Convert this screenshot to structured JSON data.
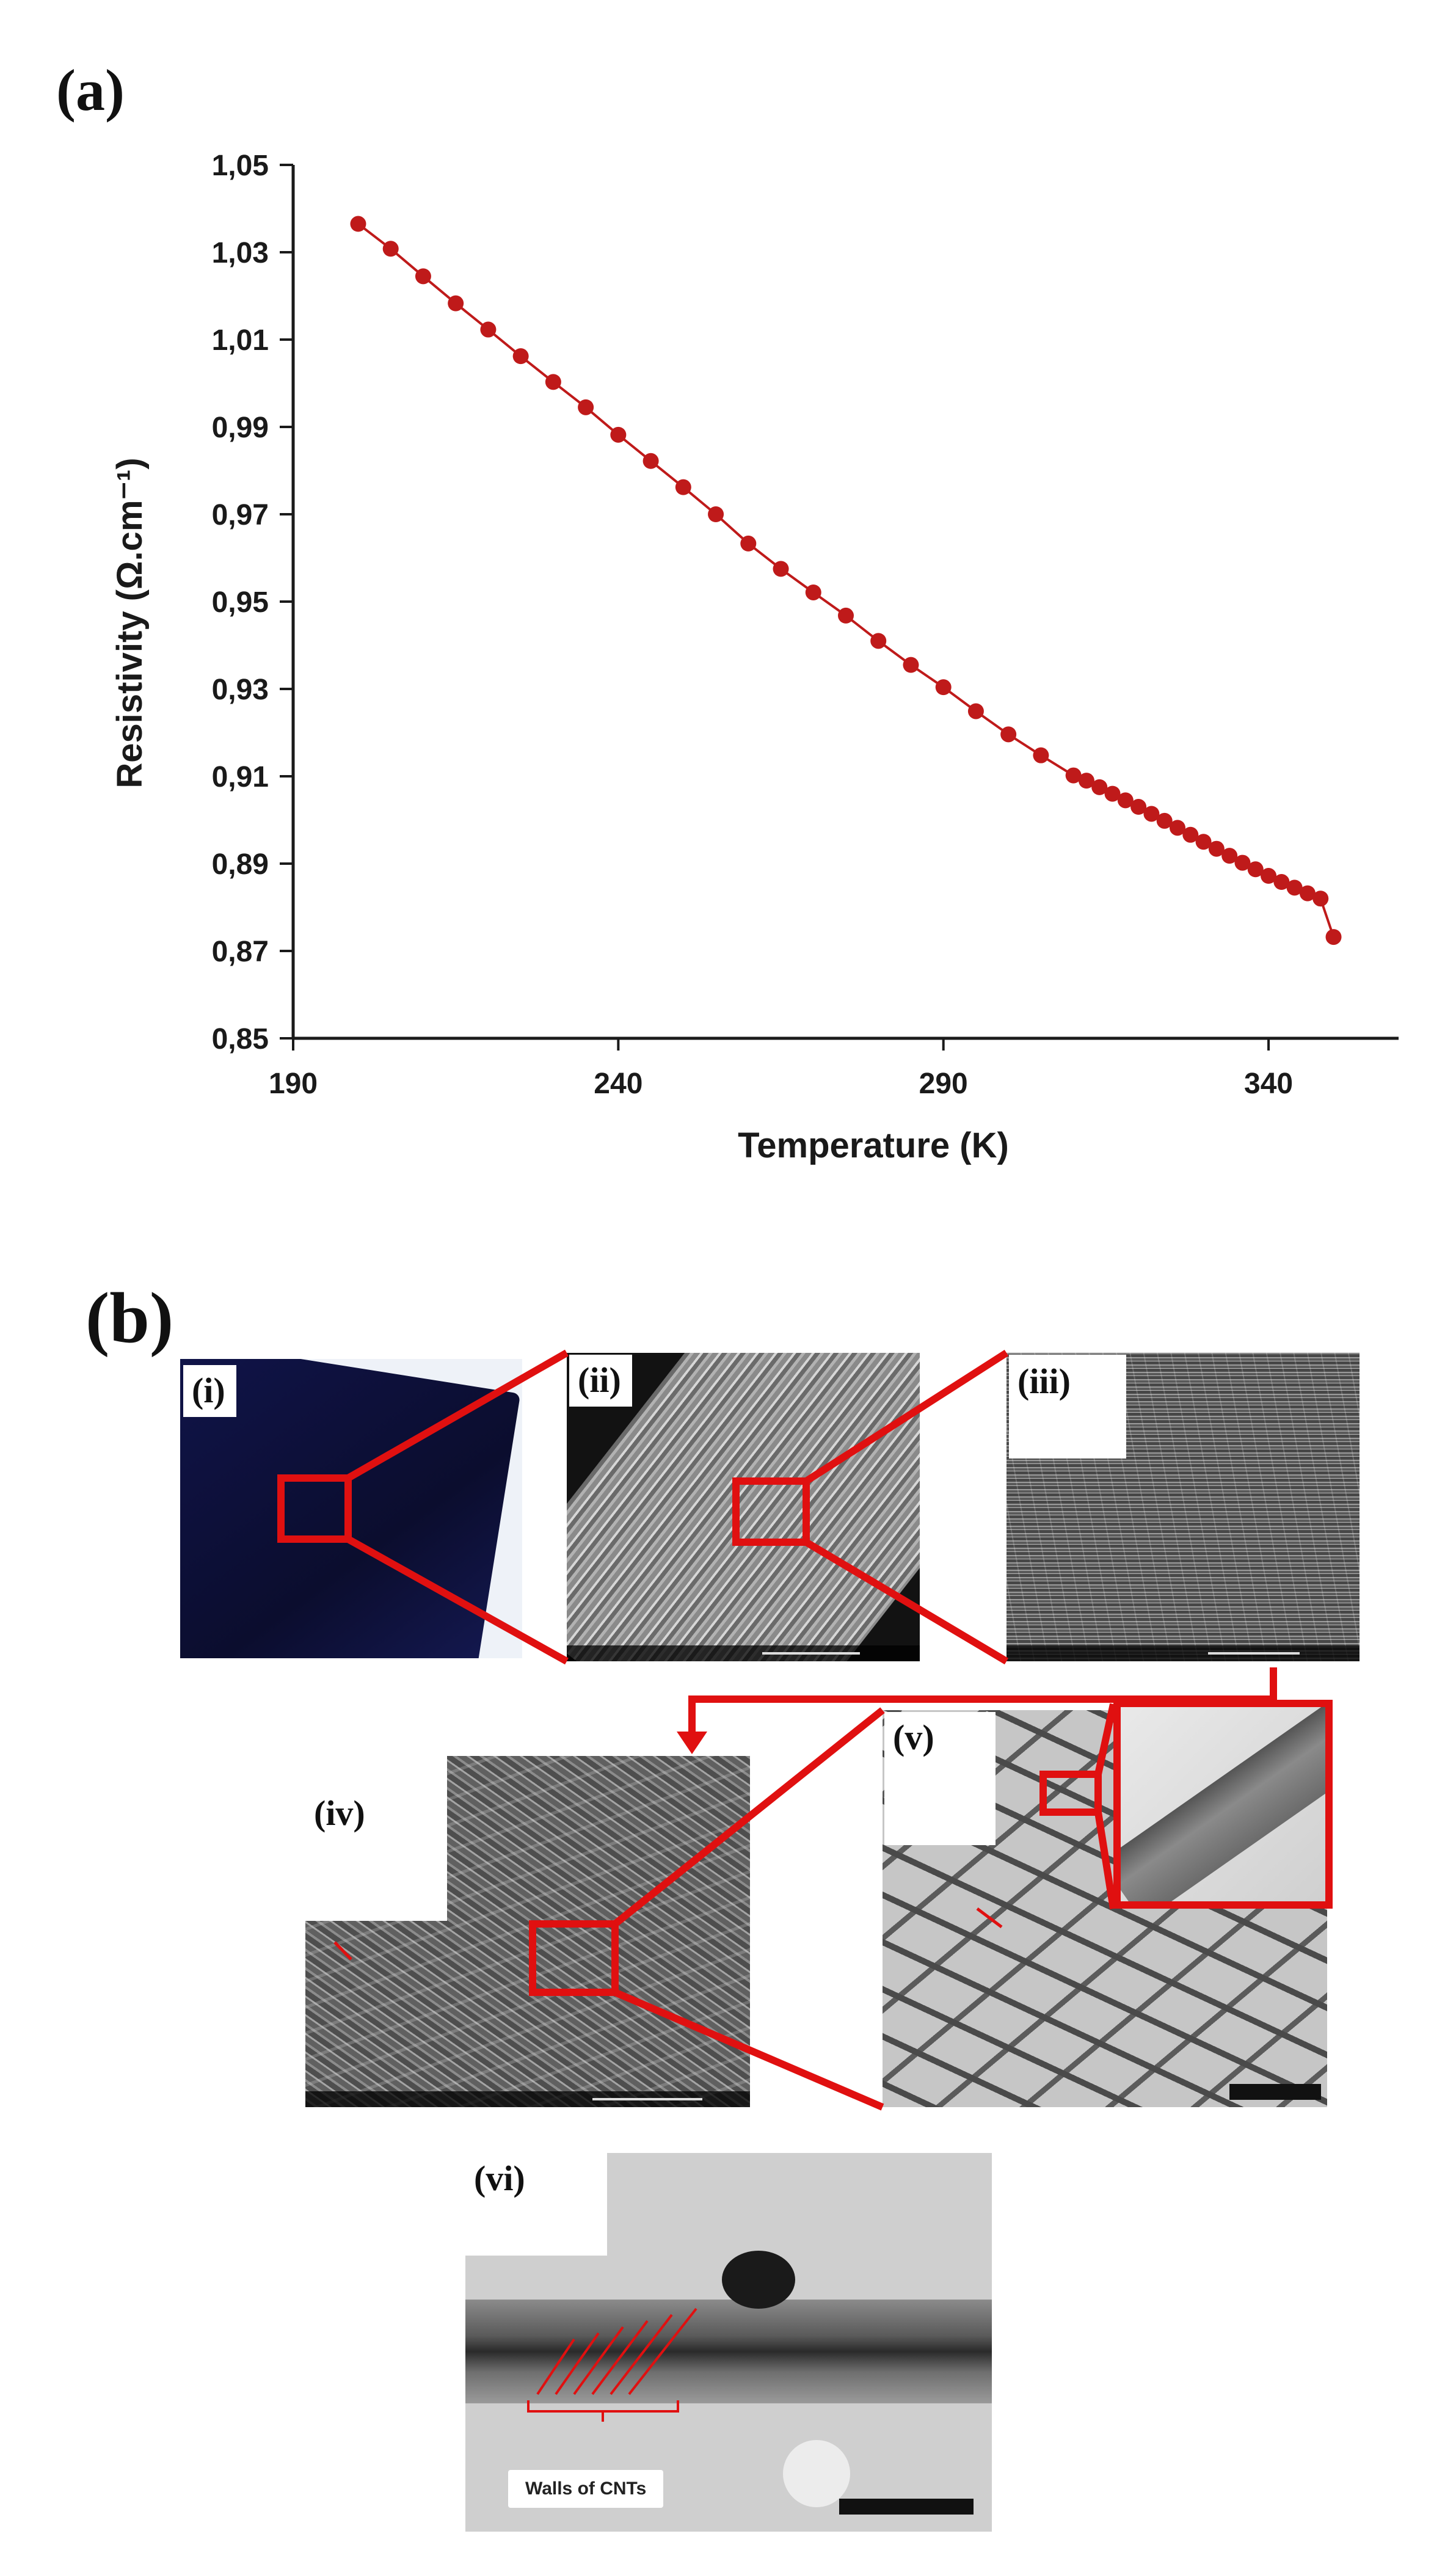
{
  "figure": {
    "panel_a_label": "(a)",
    "panel_b_label": "(b)"
  },
  "colors": {
    "data": "#bf1a1a",
    "highlight": "#e01010",
    "axis": "#1a1a1a"
  },
  "chart_data": {
    "type": "line",
    "xlabel": "Temperature (K)",
    "ylabel": "Resistivity (Ω.cm⁻¹)",
    "xlim": [
      190,
      360
    ],
    "ylim": [
      0.85,
      1.05
    ],
    "x_ticks": [
      190,
      240,
      290,
      340
    ],
    "x_tick_labels": [
      "190",
      "240",
      "290",
      "340"
    ],
    "y_ticks": [
      0.85,
      0.87,
      0.89,
      0.91,
      0.93,
      0.95,
      0.97,
      0.99,
      1.01,
      1.03,
      1.05
    ],
    "y_tick_labels": [
      "0,85",
      "0,87",
      "0,89",
      "0,91",
      "0,93",
      "0,95",
      "0,97",
      "0,99",
      "1,01",
      "1,03",
      "1,05"
    ],
    "grid": false,
    "marker": "circle",
    "series": [
      {
        "x": [
          200,
          205,
          210,
          215,
          220,
          225,
          230,
          235,
          240,
          245,
          250,
          255,
          260,
          265,
          270,
          275,
          280,
          285,
          290,
          295,
          300,
          305,
          310,
          312,
          314,
          316,
          318,
          320,
          322,
          324,
          326,
          328,
          330,
          332,
          334,
          336,
          338,
          340,
          342,
          344,
          346,
          348,
          350
        ],
        "y": [
          1.0365,
          1.0308,
          1.0245,
          1.0183,
          1.0123,
          1.0062,
          1.0003,
          0.9945,
          0.9882,
          0.9822,
          0.9762,
          0.97,
          0.9633,
          0.9575,
          0.9521,
          0.9468,
          0.941,
          0.9355,
          0.9304,
          0.9249,
          0.9196,
          0.9148,
          0.9102,
          0.909,
          0.9075,
          0.906,
          0.9045,
          0.903,
          0.9014,
          0.8998,
          0.8982,
          0.8966,
          0.895,
          0.8934,
          0.8918,
          0.8902,
          0.8887,
          0.8872,
          0.8858,
          0.8845,
          0.8832,
          0.882,
          0.8732
        ]
      }
    ]
  },
  "micrographs": {
    "i": "(i)",
    "ii": "(ii)",
    "iii": "(iii)",
    "iv": "(iv)",
    "v": "(v)",
    "vi": "(vi)"
  },
  "annotation": {
    "walls_label": "Walls  of CNTs"
  }
}
